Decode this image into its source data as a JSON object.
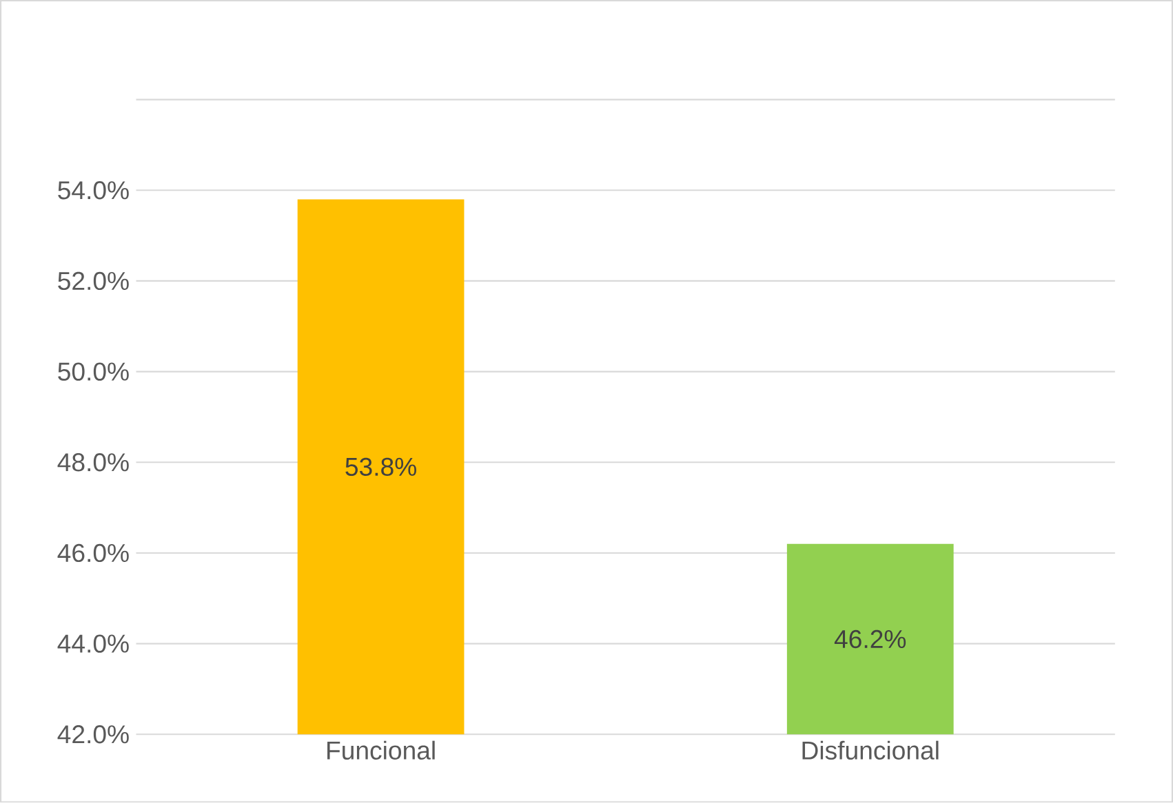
{
  "chart_data": {
    "type": "bar",
    "categories": [
      "Funcional",
      "Disfuncional"
    ],
    "values": [
      53.8,
      46.2
    ],
    "colors": [
      "#ffc000",
      "#92d050"
    ],
    "value_labels": [
      "53.8%",
      "46.2%"
    ],
    "ylim": [
      42,
      56
    ],
    "yticks": [
      {
        "value": 42,
        "label": "42.0%"
      },
      {
        "value": 44,
        "label": "44.0%"
      },
      {
        "value": 46,
        "label": "46.0%"
      },
      {
        "value": 48,
        "label": "48.0%"
      },
      {
        "value": 50,
        "label": "50.0%"
      },
      {
        "value": 52,
        "label": "52.0%"
      },
      {
        "value": 54,
        "label": "54.0%"
      },
      {
        "value": 56,
        "label": null
      }
    ],
    "grid": "y"
  }
}
